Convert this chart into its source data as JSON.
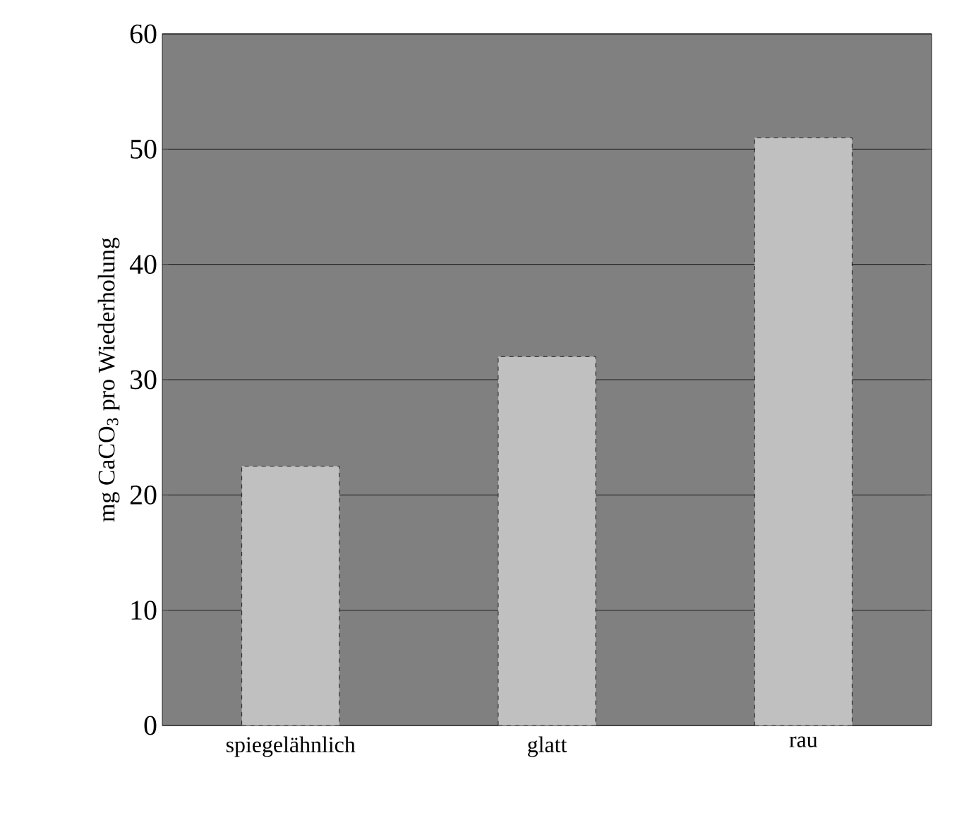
{
  "chart_data": {
    "type": "bar",
    "ylabel": "mg CaCO$_{3}$ pro Wiederholung",
    "categories": [
      "spiegelähnlich",
      "glatt",
      "rau"
    ],
    "values": [
      22.5,
      32,
      51
    ],
    "color": "#c0c0c0",
    "ylim": [
      0,
      60
    ],
    "yticks": [
      0,
      10,
      20,
      30,
      40,
      50,
      60
    ],
    "grid": "y"
  }
}
